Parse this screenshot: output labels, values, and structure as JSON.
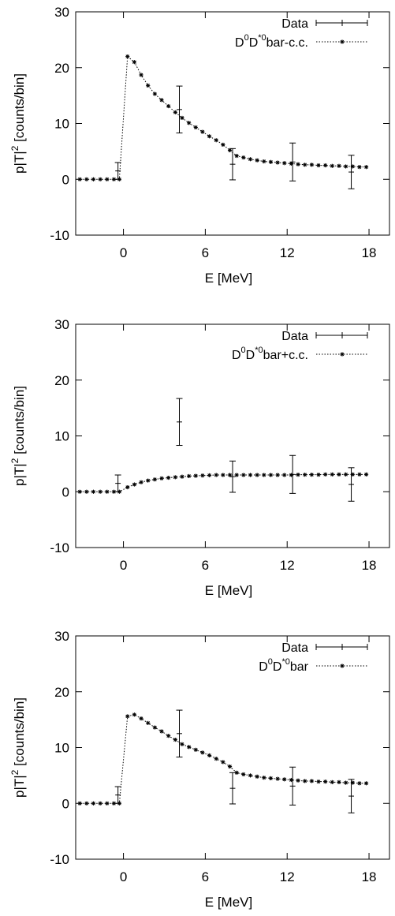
{
  "chart_data": [
    {
      "type": "scatter",
      "xlabel": "E [MeV]",
      "ylabel": "p|T|",
      "ylabel_sup": "2",
      "ylabel_unit": "[counts/bin]",
      "xlim": [
        -3.5,
        19.5
      ],
      "ylim": [
        -10,
        30
      ],
      "xticks": [
        0,
        6,
        12,
        18
      ],
      "yticks": [
        -10,
        0,
        10,
        20,
        30
      ],
      "legend": [
        {
          "parts": [
            {
              "t": "D"
            },
            {
              "t": "0",
              "sup": true
            },
            {
              "t": "D"
            },
            {
              "t": "*0",
              "sup": true
            },
            {
              "t": "bar-c.c."
            }
          ],
          "style": "dotted-stars"
        },
        {
          "parts": [
            {
              "t": "Data"
            }
          ],
          "style": "errorbar"
        }
      ],
      "series": [
        {
          "name": "Data",
          "x": [
            -0.4,
            4.1,
            8.0,
            12.4,
            16.7
          ],
          "y": [
            1.5,
            12.5,
            2.7,
            3.1,
            1.3
          ],
          "yerr": [
            1.5,
            4.2,
            2.8,
            3.4,
            3.0
          ],
          "xerr": [
            0.2,
            0.2,
            0.2,
            0.2,
            0.2
          ]
        },
        {
          "name": "D0D*0bar-c.c.",
          "x": [
            -3.2,
            -2.7,
            -2.2,
            -1.7,
            -1.2,
            -0.7,
            -0.3,
            0.3,
            0.8,
            1.3,
            1.8,
            2.3,
            2.8,
            3.3,
            3.8,
            4.3,
            4.8,
            5.3,
            5.8,
            6.3,
            6.8,
            7.3,
            7.8,
            8.3,
            8.8,
            9.3,
            9.8,
            10.3,
            10.8,
            11.3,
            11.8,
            12.3,
            12.8,
            13.3,
            13.8,
            14.3,
            14.8,
            15.3,
            15.8,
            16.3,
            16.8,
            17.3,
            17.8
          ],
          "y": [
            0,
            0,
            0,
            0,
            0,
            0,
            0,
            22.0,
            21.0,
            18.7,
            16.8,
            15.3,
            14.2,
            13.1,
            12.0,
            11.0,
            10.1,
            9.3,
            8.5,
            7.7,
            7.0,
            6.2,
            5.2,
            4.2,
            3.9,
            3.6,
            3.4,
            3.2,
            3.1,
            3.0,
            2.9,
            2.8,
            2.7,
            2.6,
            2.6,
            2.5,
            2.5,
            2.4,
            2.4,
            2.3,
            2.3,
            2.2,
            2.2
          ]
        }
      ]
    },
    {
      "type": "scatter",
      "xlabel": "E [MeV]",
      "ylabel": "p|T|",
      "ylabel_sup": "2",
      "ylabel_unit": "[counts/bin]",
      "xlim": [
        -3.5,
        19.5
      ],
      "ylim": [
        -10,
        30
      ],
      "xticks": [
        0,
        6,
        12,
        18
      ],
      "yticks": [
        -10,
        0,
        10,
        20,
        30
      ],
      "legend": [
        {
          "parts": [
            {
              "t": "D"
            },
            {
              "t": "0",
              "sup": true
            },
            {
              "t": "D"
            },
            {
              "t": "*0",
              "sup": true
            },
            {
              "t": "bar+c.c."
            }
          ],
          "style": "dotted-stars"
        },
        {
          "parts": [
            {
              "t": "Data"
            }
          ],
          "style": "errorbar"
        }
      ],
      "series": [
        {
          "name": "Data",
          "x": [
            -0.4,
            4.1,
            8.0,
            12.4,
            16.7
          ],
          "y": [
            1.5,
            12.5,
            2.7,
            3.1,
            1.3
          ],
          "yerr": [
            1.5,
            4.2,
            2.8,
            3.4,
            3.0
          ],
          "xerr": [
            0.2,
            0.2,
            0.2,
            0.2,
            0.2
          ]
        },
        {
          "name": "D0D*0bar+c.c.",
          "x": [
            -3.2,
            -2.7,
            -2.2,
            -1.7,
            -1.2,
            -0.7,
            -0.3,
            0.3,
            0.8,
            1.3,
            1.8,
            2.3,
            2.8,
            3.3,
            3.8,
            4.3,
            4.8,
            5.3,
            5.8,
            6.3,
            6.8,
            7.3,
            7.8,
            8.3,
            8.8,
            9.3,
            9.8,
            10.3,
            10.8,
            11.3,
            11.8,
            12.3,
            12.8,
            13.3,
            13.8,
            14.3,
            14.8,
            15.3,
            15.8,
            16.3,
            16.8,
            17.3,
            17.8
          ],
          "y": [
            0,
            0,
            0,
            0,
            0,
            0,
            0,
            0.8,
            1.3,
            1.7,
            2.0,
            2.2,
            2.4,
            2.5,
            2.6,
            2.7,
            2.8,
            2.85,
            2.9,
            2.95,
            3.0,
            3.0,
            3.0,
            3.0,
            3.0,
            3.0,
            3.0,
            3.0,
            3.0,
            3.0,
            3.0,
            3.0,
            3.05,
            3.05,
            3.05,
            3.05,
            3.1,
            3.1,
            3.1,
            3.1,
            3.1,
            3.1,
            3.1
          ]
        }
      ]
    },
    {
      "type": "scatter",
      "xlabel": "E [MeV]",
      "ylabel": "p|T|",
      "ylabel_sup": "2",
      "ylabel_unit": "[counts/bin]",
      "xlim": [
        -3.5,
        19.5
      ],
      "ylim": [
        -10,
        30
      ],
      "xticks": [
        0,
        6,
        12,
        18
      ],
      "yticks": [
        -10,
        0,
        10,
        20,
        30
      ],
      "legend": [
        {
          "parts": [
            {
              "t": "D"
            },
            {
              "t": "0",
              "sup": true
            },
            {
              "t": "D"
            },
            {
              "t": "*0",
              "sup": true
            },
            {
              "t": "bar"
            }
          ],
          "style": "dotted-stars"
        },
        {
          "parts": [
            {
              "t": "Data"
            }
          ],
          "style": "errorbar"
        }
      ],
      "series": [
        {
          "name": "Data",
          "x": [
            -0.4,
            4.1,
            8.0,
            12.4,
            16.7
          ],
          "y": [
            1.5,
            12.5,
            2.7,
            3.1,
            1.3
          ],
          "yerr": [
            1.5,
            4.2,
            2.8,
            3.4,
            3.0
          ],
          "xerr": [
            0.2,
            0.2,
            0.2,
            0.2,
            0.2
          ]
        },
        {
          "name": "D0D*0bar",
          "x": [
            -3.2,
            -2.7,
            -2.2,
            -1.7,
            -1.2,
            -0.7,
            -0.3,
            0.3,
            0.8,
            1.3,
            1.8,
            2.3,
            2.8,
            3.3,
            3.8,
            4.3,
            4.8,
            5.3,
            5.8,
            6.3,
            6.8,
            7.3,
            7.8,
            8.3,
            8.8,
            9.3,
            9.8,
            10.3,
            10.8,
            11.3,
            11.8,
            12.3,
            12.8,
            13.3,
            13.8,
            14.3,
            14.8,
            15.3,
            15.8,
            16.3,
            16.8,
            17.3,
            17.8
          ],
          "y": [
            0,
            0,
            0,
            0,
            0,
            0,
            0,
            15.6,
            15.9,
            15.2,
            14.4,
            13.6,
            12.9,
            12.1,
            11.4,
            10.6,
            10.1,
            9.6,
            9.1,
            8.6,
            8.0,
            7.4,
            6.6,
            5.5,
            5.2,
            5.0,
            4.8,
            4.6,
            4.5,
            4.4,
            4.3,
            4.2,
            4.1,
            4.0,
            4.0,
            3.9,
            3.9,
            3.8,
            3.8,
            3.7,
            3.7,
            3.6,
            3.6
          ]
        }
      ]
    }
  ]
}
